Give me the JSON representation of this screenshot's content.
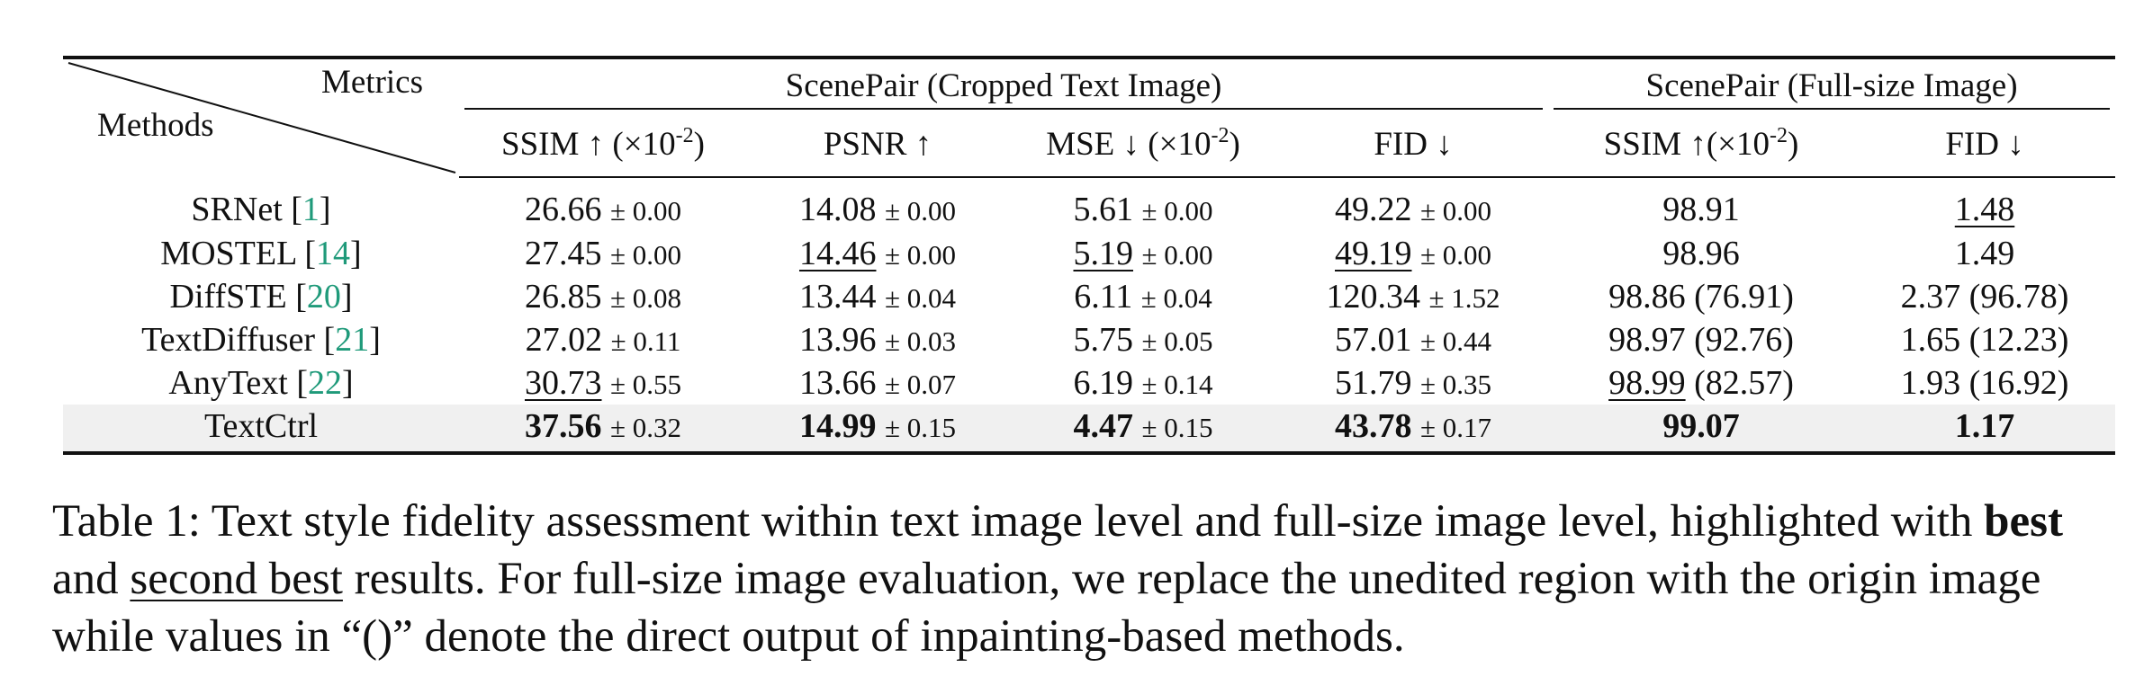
{
  "table": {
    "corner": {
      "metrics_label": "Metrics",
      "methods_label": "Methods"
    },
    "groups": [
      {
        "label": "ScenePair (Cropped Text Image)"
      },
      {
        "label": "ScenePair (Full-size Image)"
      }
    ],
    "metrics": [
      {
        "name": "SSIM",
        "arrow": "↑",
        "scale": " (×10",
        "exp": "-2",
        "close": ")"
      },
      {
        "name": "PSNR",
        "arrow": "↑",
        "scale": "",
        "exp": "",
        "close": ""
      },
      {
        "name": "MSE",
        "arrow": "↓",
        "scale": " (×10",
        "exp": "-2",
        "close": ")"
      },
      {
        "name": "FID",
        "arrow": "↓",
        "scale": "",
        "exp": "",
        "close": ""
      },
      {
        "name": "SSIM",
        "arrow": "↑",
        "scale": "(×10",
        "exp": "-2",
        "close": ")"
      },
      {
        "name": "FID",
        "arrow": "↓",
        "scale": "",
        "exp": "",
        "close": ""
      }
    ],
    "rows": [
      {
        "method": "SRNet",
        "cite": "1",
        "highlight": false,
        "cells": [
          {
            "v": "26.66",
            "s": "± 0.00"
          },
          {
            "v": "14.08",
            "s": "± 0.00"
          },
          {
            "v": "5.61",
            "s": "± 0.00"
          },
          {
            "v": "49.22",
            "s": "± 0.00"
          },
          {
            "v": "98.91",
            "p": ""
          },
          {
            "v": "1.48",
            "p": "",
            "u": true
          }
        ]
      },
      {
        "method": "MOSTEL",
        "cite": "14",
        "highlight": false,
        "cells": [
          {
            "v": "27.45",
            "s": "± 0.00"
          },
          {
            "v": "14.46",
            "s": "± 0.00",
            "u": true
          },
          {
            "v": "5.19",
            "s": "± 0.00",
            "u": true
          },
          {
            "v": "49.19",
            "s": "± 0.00",
            "u": true
          },
          {
            "v": "98.96",
            "p": ""
          },
          {
            "v": "1.49",
            "p": ""
          }
        ]
      },
      {
        "method": "DiffSTE",
        "cite": "20",
        "highlight": false,
        "cells": [
          {
            "v": "26.85",
            "s": "± 0.08"
          },
          {
            "v": "13.44",
            "s": "± 0.04"
          },
          {
            "v": "6.11",
            "s": "± 0.04"
          },
          {
            "v": "120.34",
            "s": "± 1.52"
          },
          {
            "v": "98.86",
            "p": " (76.91)"
          },
          {
            "v": "2.37",
            "p": " (96.78)"
          }
        ]
      },
      {
        "method": "TextDiffuser",
        "cite": "21",
        "highlight": false,
        "cells": [
          {
            "v": "27.02",
            "s": "± 0.11"
          },
          {
            "v": "13.96",
            "s": "± 0.03"
          },
          {
            "v": "5.75",
            "s": "± 0.05"
          },
          {
            "v": "57.01",
            "s": "± 0.44"
          },
          {
            "v": "98.97",
            "p": " (92.76)"
          },
          {
            "v": "1.65",
            "p": " (12.23)"
          }
        ]
      },
      {
        "method": "AnyText",
        "cite": "22",
        "highlight": false,
        "cells": [
          {
            "v": "30.73",
            "s": "± 0.55",
            "u": true
          },
          {
            "v": "13.66",
            "s": "± 0.07"
          },
          {
            "v": "6.19",
            "s": "± 0.14"
          },
          {
            "v": "51.79",
            "s": "± 0.35"
          },
          {
            "v": "98.99",
            "p": " (82.57)",
            "u": true
          },
          {
            "v": "1.93",
            "p": " (16.92)"
          }
        ]
      },
      {
        "method": "TextCtrl",
        "cite": "",
        "highlight": true,
        "cells": [
          {
            "v": "37.56",
            "s": "± 0.32",
            "b": true
          },
          {
            "v": "14.99",
            "s": "± 0.15",
            "b": true
          },
          {
            "v": "4.47",
            "s": "± 0.15",
            "b": true
          },
          {
            "v": "43.78",
            "s": "± 0.17",
            "b": true
          },
          {
            "v": "99.07",
            "p": "",
            "b": true
          },
          {
            "v": "1.17",
            "p": "",
            "b": true
          }
        ]
      }
    ],
    "colors": {
      "citation": "#1f9a7a",
      "highlight_row": "#f0f0f0"
    }
  },
  "caption": {
    "part1": "Table 1: Text style fidelity assessment within text image level and full-size image level, highlighted with ",
    "best": "best",
    "part2": " and ",
    "second": "second best",
    "part3": " results. For full-size image evaluation, we replace the unedited region with the origin image while values in “()” denote the direct output of inpainting-based methods."
  }
}
